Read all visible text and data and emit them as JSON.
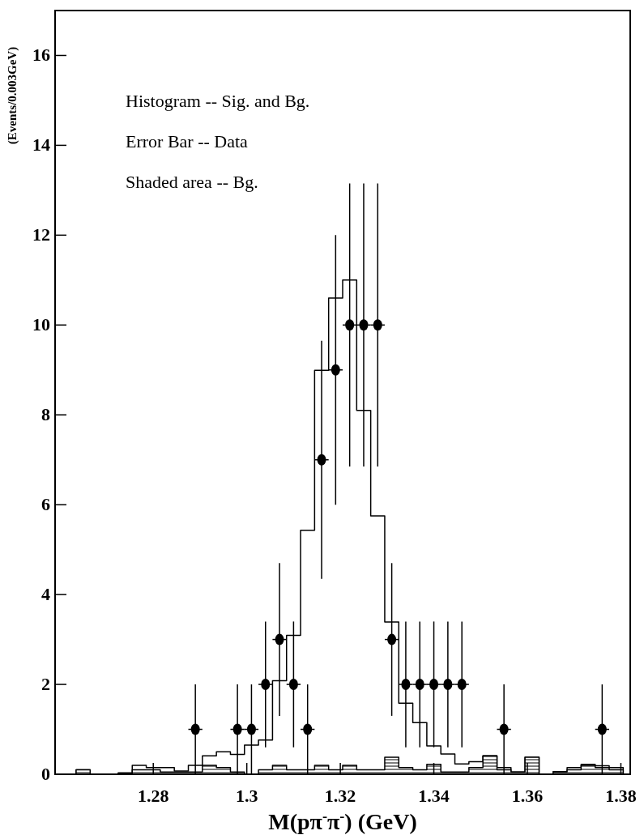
{
  "chart_data": {
    "type": "histogram",
    "xlabel": "M(pπ$^{-}$π$^{-}$) (GeV)",
    "ylabel": "(Events/0.003GeV)",
    "annotations": [
      "Histogram -- Sig. and Bg.",
      "Error Bar -- Data",
      "Shaded area -- Bg."
    ],
    "bins": [
      1.2635,
      1.2665,
      1.2695,
      1.2725,
      1.2755,
      1.2785,
      1.2815,
      1.2845,
      1.2875,
      1.2905,
      1.2935,
      1.2965,
      1.2995,
      1.3025,
      1.3055,
      1.3085,
      1.3115,
      1.3145,
      1.3175,
      1.3205,
      1.3235,
      1.3265,
      1.3295,
      1.3325,
      1.3355,
      1.3385,
      1.3415,
      1.3445,
      1.3475,
      1.3505,
      1.3535,
      1.3565,
      1.3595,
      1.3625,
      1.3655,
      1.3685,
      1.3715,
      1.3745,
      1.3775,
      1.3805
    ],
    "series": [
      {
        "color": "#000000",
        "values": [
          0.1,
          0,
          0,
          0.03,
          0.2,
          0.15,
          0.15,
          0.07,
          0.2,
          0.41,
          0.5,
          0.44,
          0.65,
          0.76,
          2.08,
          3.09,
          5.43,
          8.99,
          10.6,
          11,
          8.1,
          5.75,
          3.39,
          1.58,
          1.15,
          0.63,
          0.45,
          0.23,
          0.28,
          0.41,
          0.15,
          0.05,
          0.38,
          0,
          0.06,
          0.15,
          0.22,
          0.19,
          0.15
        ]
      },
      {
        "color": "#000000",
        "values": [
          0.1,
          0,
          0,
          0.02,
          0.1,
          0.1,
          0.05,
          0.05,
          0.05,
          0.2,
          0.15,
          0.05,
          0,
          0.1,
          0.2,
          0.1,
          0.1,
          0.2,
          0.1,
          0.2,
          0.1,
          0.1,
          0.38,
          0.15,
          0.1,
          0.22,
          0.05,
          0.05,
          0.15,
          0.41,
          0.1,
          0.05,
          0.38,
          0,
          0.05,
          0.1,
          0.2,
          0.15,
          0.1
        ]
      },
      {
        "type": "scatter",
        "color": "#000000",
        "marker": "circle",
        "x": [
          1.289,
          1.298,
          1.301,
          1.304,
          1.307,
          1.31,
          1.313,
          1.316,
          1.319,
          1.322,
          1.325,
          1.328,
          1.331,
          1.334,
          1.337,
          1.34,
          1.343,
          1.346,
          1.355,
          1.376
        ],
        "values": [
          1,
          1,
          1,
          2,
          3,
          2,
          1,
          7,
          9,
          10,
          10,
          10,
          3,
          2,
          2,
          2,
          2,
          2,
          1,
          1
        ],
        "errors": [
          [
            0,
            2
          ],
          [
            0,
            2
          ],
          [
            0,
            2
          ],
          [
            0.6,
            3.4
          ],
          [
            1.3,
            4.7
          ],
          [
            0.6,
            3.4
          ],
          [
            0,
            2
          ],
          [
            4.35,
            9.65
          ],
          [
            6,
            12
          ],
          [
            6.85,
            13.15
          ],
          [
            6.85,
            13.15
          ],
          [
            6.85,
            13.15
          ],
          [
            1.3,
            4.7
          ],
          [
            0.6,
            3.4
          ],
          [
            0.6,
            3.4
          ],
          [
            0.6,
            3.4
          ],
          [
            0.6,
            3.4
          ],
          [
            0.6,
            3.4
          ],
          [
            0,
            2
          ],
          [
            0,
            2
          ]
        ],
        "xerrors": [
          0.0015,
          0.0015,
          0.0015,
          0.0015,
          0.0015,
          0.0015,
          0.0015,
          0.0015,
          0.0015,
          0.0015,
          0.0015,
          0.0015,
          0.0015,
          0.0015,
          0.0015,
          0.0015,
          0.0015,
          0.0015,
          0.0015,
          0.0015
        ]
      }
    ],
    "xlim": [
      1.259,
      1.382
    ],
    "xticks": [
      1.28,
      1.3,
      1.32,
      1.34,
      1.36,
      1.38
    ],
    "ylim": [
      0,
      17
    ],
    "yticks": [
      0,
      2,
      4,
      6,
      8,
      10,
      12,
      14,
      16
    ],
    "grid": false
  }
}
